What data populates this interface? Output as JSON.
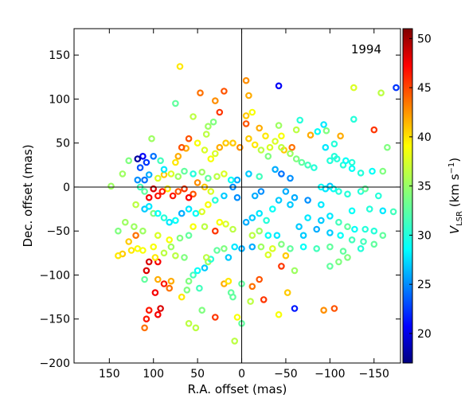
{
  "chart_data": {
    "type": "scatter",
    "annotation": "1994",
    "xlabel": "R.A. offset (mas)",
    "ylabel": "Dec. offset (mas)",
    "xlim": [
      190,
      -180
    ],
    "ylim": [
      -200,
      180
    ],
    "xticks": [
      150,
      100,
      50,
      0,
      -50,
      -100,
      -150
    ],
    "yticks": [
      150,
      100,
      50,
      0,
      -50,
      -100,
      -150,
      -200
    ],
    "grid": false,
    "reference_lines": {
      "x": 0,
      "y": 0
    },
    "colorbar": {
      "label_main": "V",
      "label_sub": "LSR",
      "label_unit": " (km s",
      "label_exp": "−1",
      "label_close": ")",
      "range": [
        17,
        51
      ],
      "ticks": [
        20,
        25,
        30,
        35,
        40,
        45,
        50
      ],
      "colormap": "jet"
    },
    "points": [
      [
        148,
        1,
        35
      ],
      [
        70,
        137,
        39
      ],
      [
        75,
        95,
        33
      ],
      [
        63,
        44,
        41
      ],
      [
        55,
        80,
        36
      ],
      [
        47,
        107,
        43
      ],
      [
        20,
        109,
        44
      ],
      [
        -5,
        121,
        42
      ],
      [
        -8,
        104,
        41
      ],
      [
        -5,
        81,
        40
      ],
      [
        25,
        85,
        45
      ],
      [
        30,
        98,
        42
      ],
      [
        38,
        69,
        35
      ],
      [
        32,
        74,
        34
      ],
      [
        40,
        60,
        36
      ],
      [
        -12,
        85,
        38
      ],
      [
        -5,
        72,
        44
      ],
      [
        -20,
        67,
        41
      ],
      [
        -27,
        58,
        39
      ],
      [
        -42,
        115,
        21
      ],
      [
        -42,
        70,
        35
      ],
      [
        -45,
        58,
        38
      ],
      [
        -48,
        42,
        40
      ],
      [
        -57,
        45,
        43
      ],
      [
        -62,
        65,
        36
      ],
      [
        -66,
        76,
        31
      ],
      [
        -78,
        59,
        41
      ],
      [
        -86,
        63,
        30
      ],
      [
        -93,
        71,
        29
      ],
      [
        -96,
        64,
        34
      ],
      [
        -112,
        58,
        41
      ],
      [
        -127,
        77,
        31
      ],
      [
        -150,
        65,
        45
      ],
      [
        -165,
        45,
        34
      ],
      [
        -175,
        113,
        23
      ],
      [
        -158,
        107,
        36
      ],
      [
        -127,
        113,
        37
      ],
      [
        -105,
        49,
        31
      ],
      [
        -95,
        45,
        29
      ],
      [
        -100,
        30,
        31
      ],
      [
        -105,
        35,
        31
      ],
      [
        -115,
        25,
        31
      ],
      [
        -125,
        21,
        30
      ],
      [
        -135,
        16,
        31
      ],
      [
        -148,
        18,
        30
      ],
      [
        -160,
        18,
        34
      ],
      [
        -108,
        32,
        31
      ],
      [
        -118,
        30,
        30
      ],
      [
        -125,
        28,
        31
      ],
      [
        -90,
        0,
        30
      ],
      [
        -95,
        -2,
        29
      ],
      [
        -100,
        1,
        28
      ],
      [
        -104,
        -2,
        30
      ],
      [
        -110,
        -5,
        31
      ],
      [
        -120,
        -8,
        31
      ],
      [
        -135,
        -5,
        31
      ],
      [
        -140,
        -2,
        33
      ],
      [
        -155,
        -10,
        31
      ],
      [
        -145,
        -25,
        31
      ],
      [
        -160,
        -27,
        29
      ],
      [
        -172,
        -28,
        32
      ],
      [
        -125,
        -27,
        30
      ],
      [
        -90,
        -20,
        29
      ],
      [
        -75,
        -15,
        26
      ],
      [
        -60,
        -12,
        27
      ],
      [
        -55,
        -20,
        28
      ],
      [
        -65,
        -45,
        28
      ],
      [
        -75,
        -35,
        29
      ],
      [
        -90,
        -38,
        28
      ],
      [
        -100,
        -33,
        29
      ],
      [
        -110,
        -40,
        32
      ],
      [
        -120,
        -45,
        33
      ],
      [
        -128,
        -48,
        30
      ],
      [
        -140,
        -48,
        31
      ],
      [
        -150,
        -50,
        31
      ],
      [
        -160,
        -55,
        33
      ],
      [
        -135,
        -70,
        31
      ],
      [
        -115,
        -73,
        33
      ],
      [
        -100,
        -68,
        33
      ],
      [
        -85,
        -70,
        32
      ],
      [
        -70,
        -68,
        30
      ],
      [
        -55,
        -70,
        33
      ],
      [
        -45,
        -65,
        34
      ],
      [
        -35,
        -70,
        37
      ],
      [
        -22,
        -68,
        35
      ],
      [
        -12,
        -68,
        27
      ],
      [
        0,
        -70,
        27
      ],
      [
        8,
        -68,
        29
      ],
      [
        15,
        -80,
        28
      ],
      [
        -30,
        -77,
        37
      ],
      [
        -50,
        -78,
        40
      ],
      [
        -45,
        -90,
        45
      ],
      [
        -60,
        -95,
        35
      ],
      [
        -100,
        -90,
        33
      ],
      [
        -110,
        -85,
        34
      ],
      [
        -120,
        -80,
        34
      ],
      [
        -52,
        -120,
        40
      ],
      [
        -20,
        -105,
        44
      ],
      [
        -12,
        -113,
        43
      ],
      [
        -60,
        -138,
        22
      ],
      [
        -93,
        -140,
        42
      ],
      [
        -105,
        -138,
        44
      ],
      [
        -42,
        -145,
        38
      ],
      [
        -25,
        -128,
        45
      ],
      [
        -10,
        -130,
        36
      ],
      [
        0,
        -155,
        33
      ],
      [
        5,
        -148,
        38
      ],
      [
        8,
        -175,
        36
      ],
      [
        30,
        -148,
        45
      ],
      [
        45,
        -140,
        34
      ],
      [
        48,
        -115,
        32
      ],
      [
        55,
        -100,
        32
      ],
      [
        50,
        -95,
        30
      ],
      [
        42,
        -92,
        28
      ],
      [
        38,
        -85,
        35
      ],
      [
        35,
        -82,
        31
      ],
      [
        40,
        -80,
        36
      ],
      [
        28,
        -72,
        33
      ],
      [
        20,
        -70,
        34
      ],
      [
        12,
        -120,
        33
      ],
      [
        20,
        -110,
        41
      ],
      [
        15,
        -107,
        39
      ],
      [
        10,
        -125,
        33
      ],
      [
        0,
        -110,
        33
      ],
      [
        52,
        -160,
        36
      ],
      [
        60,
        -155,
        36
      ],
      [
        68,
        -125,
        39
      ],
      [
        60,
        -107,
        34
      ],
      [
        62,
        -117,
        34
      ],
      [
        80,
        -107,
        41
      ],
      [
        82,
        -115,
        43
      ],
      [
        88,
        -110,
        46
      ],
      [
        95,
        -85,
        47
      ],
      [
        105,
        -85,
        48
      ],
      [
        108,
        -95,
        48
      ],
      [
        110,
        -105,
        33
      ],
      [
        95,
        -105,
        41
      ],
      [
        98,
        -120,
        47
      ],
      [
        92,
        -138,
        48
      ],
      [
        95,
        -145,
        47
      ],
      [
        108,
        -150,
        46
      ],
      [
        105,
        -140,
        46
      ],
      [
        110,
        -160,
        43
      ],
      [
        65,
        -80,
        34
      ],
      [
        75,
        -78,
        36
      ],
      [
        80,
        -68,
        35
      ],
      [
        88,
        -75,
        36
      ],
      [
        98,
        -80,
        39
      ],
      [
        100,
        -68,
        38
      ],
      [
        112,
        -72,
        38
      ],
      [
        118,
        -70,
        38
      ],
      [
        125,
        -72,
        39
      ],
      [
        135,
        -76,
        40
      ],
      [
        140,
        -78,
        39
      ],
      [
        128,
        -62,
        40
      ],
      [
        120,
        -55,
        43
      ],
      [
        112,
        -50,
        35
      ],
      [
        122,
        -45,
        35
      ],
      [
        132,
        -40,
        35
      ],
      [
        140,
        -50,
        34
      ],
      [
        95,
        -55,
        37
      ],
      [
        82,
        -60,
        38
      ],
      [
        70,
        -58,
        34
      ],
      [
        60,
        -55,
        33
      ],
      [
        55,
        -45,
        38
      ],
      [
        42,
        -45,
        36
      ],
      [
        30,
        -50,
        45
      ],
      [
        25,
        -40,
        38
      ],
      [
        18,
        -42,
        37
      ],
      [
        10,
        -48,
        36
      ],
      [
        -5,
        -40,
        27
      ],
      [
        -12,
        -35,
        28
      ],
      [
        -20,
        -30,
        29
      ],
      [
        -28,
        -38,
        31
      ],
      [
        -35,
        -25,
        30
      ],
      [
        -42,
        -15,
        28
      ],
      [
        -50,
        -5,
        27
      ],
      [
        -55,
        10,
        26
      ],
      [
        -45,
        15,
        25
      ],
      [
        -38,
        20,
        27
      ],
      [
        -30,
        35,
        34
      ],
      [
        -20,
        12,
        32
      ],
      [
        -8,
        15,
        28
      ],
      [
        5,
        8,
        27
      ],
      [
        10,
        0,
        26
      ],
      [
        -15,
        -10,
        27
      ],
      [
        -22,
        -5,
        26
      ],
      [
        5,
        -12,
        26
      ],
      [
        20,
        -10,
        28
      ],
      [
        30,
        -15,
        31
      ],
      [
        35,
        -5,
        37
      ],
      [
        42,
        0,
        40
      ],
      [
        50,
        5,
        42
      ],
      [
        55,
        -8,
        44
      ],
      [
        60,
        -12,
        47
      ],
      [
        65,
        -2,
        45
      ],
      [
        72,
        -5,
        44
      ],
      [
        78,
        -10,
        46
      ],
      [
        84,
        -2,
        39
      ],
      [
        90,
        -5,
        46
      ],
      [
        95,
        -10,
        46
      ],
      [
        100,
        -2,
        48
      ],
      [
        105,
        -12,
        47
      ],
      [
        110,
        -5,
        33
      ],
      [
        115,
        0,
        32
      ],
      [
        118,
        8,
        26
      ],
      [
        110,
        8,
        25
      ],
      [
        105,
        14,
        27
      ],
      [
        95,
        10,
        37
      ],
      [
        88,
        14,
        40
      ],
      [
        80,
        15,
        37
      ],
      [
        72,
        12,
        35
      ],
      [
        65,
        18,
        33
      ],
      [
        55,
        15,
        31
      ],
      [
        45,
        17,
        35
      ],
      [
        38,
        10,
        33
      ],
      [
        28,
        12,
        36
      ],
      [
        20,
        15,
        37
      ],
      [
        12,
        8,
        30
      ],
      [
        112,
        35,
        21
      ],
      [
        108,
        28,
        23
      ],
      [
        115,
        22,
        24
      ],
      [
        118,
        32,
        18
      ],
      [
        100,
        35,
        25
      ],
      [
        92,
        30,
        32
      ],
      [
        88,
        20,
        29
      ],
      [
        75,
        28,
        39
      ],
      [
        72,
        35,
        41
      ],
      [
        68,
        45,
        44
      ],
      [
        60,
        55,
        44
      ],
      [
        50,
        50,
        38
      ],
      [
        42,
        42,
        37
      ],
      [
        35,
        32,
        38
      ],
      [
        30,
        38,
        37
      ],
      [
        25,
        45,
        41
      ],
      [
        18,
        50,
        40
      ],
      [
        10,
        50,
        40
      ],
      [
        2,
        45,
        42
      ],
      [
        -8,
        55,
        40
      ],
      [
        -15,
        48,
        39
      ],
      [
        -22,
        42,
        36
      ],
      [
        -32,
        45,
        37
      ],
      [
        -38,
        52,
        37
      ],
      [
        -45,
        45,
        36
      ],
      [
        -55,
        38,
        35
      ],
      [
        -62,
        32,
        34
      ],
      [
        -68,
        28,
        33
      ],
      [
        -75,
        25,
        32
      ],
      [
        -82,
        22,
        31
      ],
      [
        102,
        55,
        35
      ],
      [
        128,
        30,
        34
      ],
      [
        135,
        15,
        35
      ],
      [
        120,
        -20,
        36
      ],
      [
        110,
        -25,
        28
      ],
      [
        105,
        -22,
        29
      ],
      [
        100,
        -30,
        34
      ],
      [
        95,
        -30,
        30
      ],
      [
        88,
        -35,
        31
      ],
      [
        82,
        -40,
        29
      ],
      [
        75,
        -38,
        30
      ],
      [
        68,
        -30,
        27
      ],
      [
        60,
        -25,
        29
      ],
      [
        52,
        -30,
        30
      ],
      [
        45,
        -28,
        37
      ],
      [
        38,
        -20,
        38
      ],
      [
        -70,
        -55,
        28
      ],
      [
        -85,
        -48,
        27
      ],
      [
        -100,
        -52,
        28
      ],
      [
        -112,
        -55,
        30
      ],
      [
        -125,
        -60,
        32
      ],
      [
        -138,
        -62,
        32
      ],
      [
        -150,
        -65,
        33
      ],
      [
        -40,
        -55,
        29
      ],
      [
        -30,
        -55,
        30
      ],
      [
        -20,
        -50,
        35
      ],
      [
        -12,
        -55,
        36
      ]
    ]
  }
}
